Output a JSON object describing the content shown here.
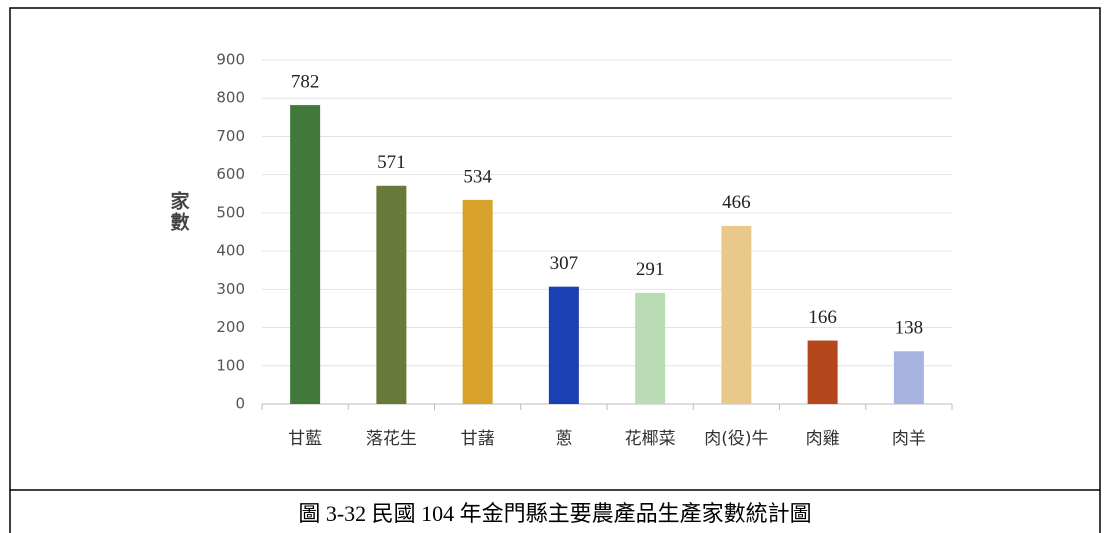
{
  "chart_data": {
    "type": "bar",
    "caption": "圖 3-32 民國 104 年金門縣主要農產品生產家數統計圖",
    "y_label": "家數",
    "categories": [
      "甘藍",
      "落花生",
      "甘藷",
      "蔥",
      "花椰菜",
      "肉(役)牛",
      "肉雞",
      "肉羊"
    ],
    "values": [
      782,
      571,
      534,
      307,
      291,
      466,
      166,
      138
    ],
    "colors": [
      "#41793b",
      "#687a3a",
      "#d9a22b",
      "#1b40b1",
      "#badcb5",
      "#e9c98a",
      "#b4471c",
      "#a7b4e1"
    ],
    "ylim": [
      0,
      900
    ],
    "yticks": [
      0,
      100,
      200,
      300,
      400,
      500,
      600,
      700,
      800,
      900
    ],
    "grid": true
  }
}
